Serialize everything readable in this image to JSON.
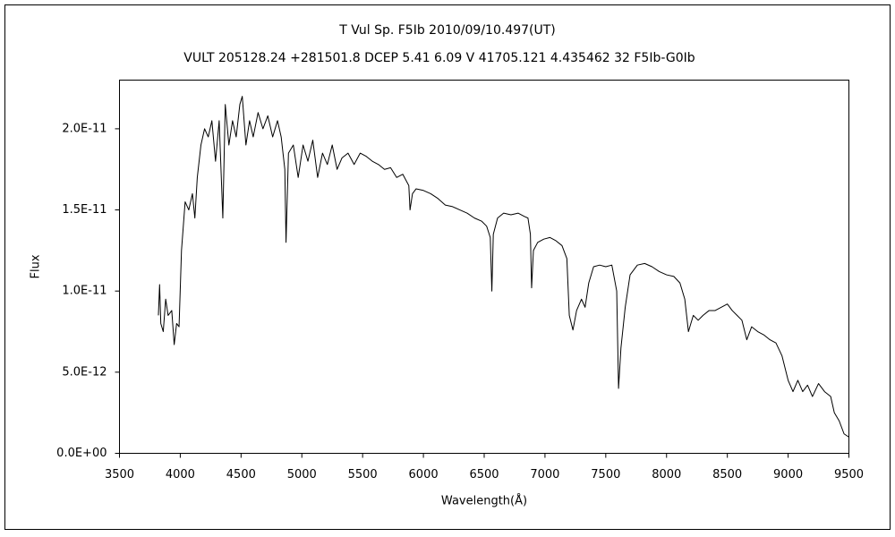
{
  "chart_data": {
    "type": "line",
    "title": "T Vul    Sp. F5Ib    2010/09/10.497(UT)",
    "subtitle": "VULT 205128.24 +281501.8 DCEP 5.41 6.09 V 41705.121 4.435462 32 F5Ib-G0Ib",
    "x_label": "Wavelength(Å)",
    "y_label": "Flux",
    "color": "#000000",
    "xlim": [
      3500,
      9500
    ],
    "xticks": [
      3500,
      4000,
      4500,
      5000,
      5500,
      6000,
      6500,
      7000,
      7500,
      8000,
      8500,
      9000,
      9500
    ],
    "ylim": [
      0,
      2.3e-11
    ],
    "yticks": [
      {
        "value": 0,
        "label": "0.0E+00"
      },
      {
        "value": 5e-12,
        "label": "5.0E-12"
      },
      {
        "value": 1e-11,
        "label": "1.0E-11"
      },
      {
        "value": 1.5e-11,
        "label": "1.5E-11"
      },
      {
        "value": 2e-11,
        "label": "2.0E-11"
      }
    ],
    "x": [
      3820,
      3830,
      3840,
      3860,
      3880,
      3900,
      3930,
      3950,
      3970,
      3990,
      4010,
      4040,
      4070,
      4100,
      4120,
      4140,
      4170,
      4200,
      4230,
      4260,
      4290,
      4320,
      4350,
      4370,
      4400,
      4430,
      4460,
      4490,
      4510,
      4540,
      4570,
      4600,
      4640,
      4680,
      4720,
      4760,
      4800,
      4830,
      4860,
      4870,
      4890,
      4930,
      4970,
      5010,
      5050,
      5090,
      5130,
      5170,
      5210,
      5250,
      5290,
      5330,
      5380,
      5430,
      5480,
      5530,
      5580,
      5630,
      5680,
      5730,
      5780,
      5830,
      5880,
      5890,
      5910,
      5940,
      6000,
      6060,
      6120,
      6180,
      6240,
      6300,
      6360,
      6420,
      6480,
      6520,
      6550,
      6563,
      6575,
      6610,
      6660,
      6720,
      6780,
      6830,
      6860,
      6880,
      6890,
      6905,
      6940,
      6990,
      7040,
      7090,
      7140,
      7180,
      7200,
      7230,
      7260,
      7300,
      7330,
      7360,
      7400,
      7450,
      7500,
      7550,
      7590,
      7605,
      7625,
      7660,
      7700,
      7760,
      7820,
      7880,
      7940,
      8000,
      8060,
      8110,
      8150,
      8180,
      8220,
      8260,
      8300,
      8350,
      8400,
      8450,
      8500,
      8540,
      8580,
      8620,
      8660,
      8700,
      8750,
      8800,
      8850,
      8900,
      8950,
      9000,
      9040,
      9080,
      9120,
      9160,
      9200,
      9250,
      9300,
      9350,
      9380,
      9420,
      9460,
      9500
    ],
    "values": [
      8.5e-12,
      1.04e-11,
      8e-12,
      7.5e-12,
      9.5e-12,
      8.5e-12,
      8.8e-12,
      6.7e-12,
      8e-12,
      7.8e-12,
      1.25e-11,
      1.55e-11,
      1.5e-11,
      1.6e-11,
      1.45e-11,
      1.7e-11,
      1.9e-11,
      2e-11,
      1.95e-11,
      2.05e-11,
      1.8e-11,
      2.05e-11,
      1.45e-11,
      2.15e-11,
      1.9e-11,
      2.05e-11,
      1.95e-11,
      2.15e-11,
      2.2e-11,
      1.9e-11,
      2.05e-11,
      1.95e-11,
      2.1e-11,
      2e-11,
      2.08e-11,
      1.95e-11,
      2.05e-11,
      1.95e-11,
      1.75e-11,
      1.3e-11,
      1.85e-11,
      1.9e-11,
      1.7e-11,
      1.9e-11,
      1.8e-11,
      1.93e-11,
      1.7e-11,
      1.85e-11,
      1.78e-11,
      1.9e-11,
      1.75e-11,
      1.82e-11,
      1.85e-11,
      1.78e-11,
      1.85e-11,
      1.83e-11,
      1.8e-11,
      1.78e-11,
      1.75e-11,
      1.76e-11,
      1.7e-11,
      1.72e-11,
      1.65e-11,
      1.5e-11,
      1.6e-11,
      1.63e-11,
      1.62e-11,
      1.6e-11,
      1.57e-11,
      1.53e-11,
      1.52e-11,
      1.5e-11,
      1.48e-11,
      1.45e-11,
      1.43e-11,
      1.4e-11,
      1.33e-11,
      1e-11,
      1.35e-11,
      1.45e-11,
      1.48e-11,
      1.47e-11,
      1.48e-11,
      1.46e-11,
      1.45e-11,
      1.35e-11,
      1.02e-11,
      1.25e-11,
      1.3e-11,
      1.32e-11,
      1.33e-11,
      1.31e-11,
      1.28e-11,
      1.2e-11,
      8.5e-12,
      7.6e-12,
      8.8e-12,
      9.5e-12,
      9e-12,
      1.05e-11,
      1.15e-11,
      1.16e-11,
      1.15e-11,
      1.16e-11,
      1e-11,
      4e-12,
      6.5e-12,
      9e-12,
      1.1e-11,
      1.16e-11,
      1.17e-11,
      1.15e-11,
      1.12e-11,
      1.1e-11,
      1.09e-11,
      1.05e-11,
      9.5e-12,
      7.5e-12,
      8.5e-12,
      8.2e-12,
      8.5e-12,
      8.8e-12,
      8.8e-12,
      9e-12,
      9.2e-12,
      8.8e-12,
      8.5e-12,
      8.2e-12,
      7e-12,
      7.8e-12,
      7.5e-12,
      7.3e-12,
      7e-12,
      6.8e-12,
      6e-12,
      4.5e-12,
      3.8e-12,
      4.5e-12,
      3.8e-12,
      4.2e-12,
      3.5e-12,
      4.3e-12,
      3.8e-12,
      3.5e-12,
      2.5e-12,
      2e-12,
      1.2e-12,
      1e-12
    ]
  }
}
